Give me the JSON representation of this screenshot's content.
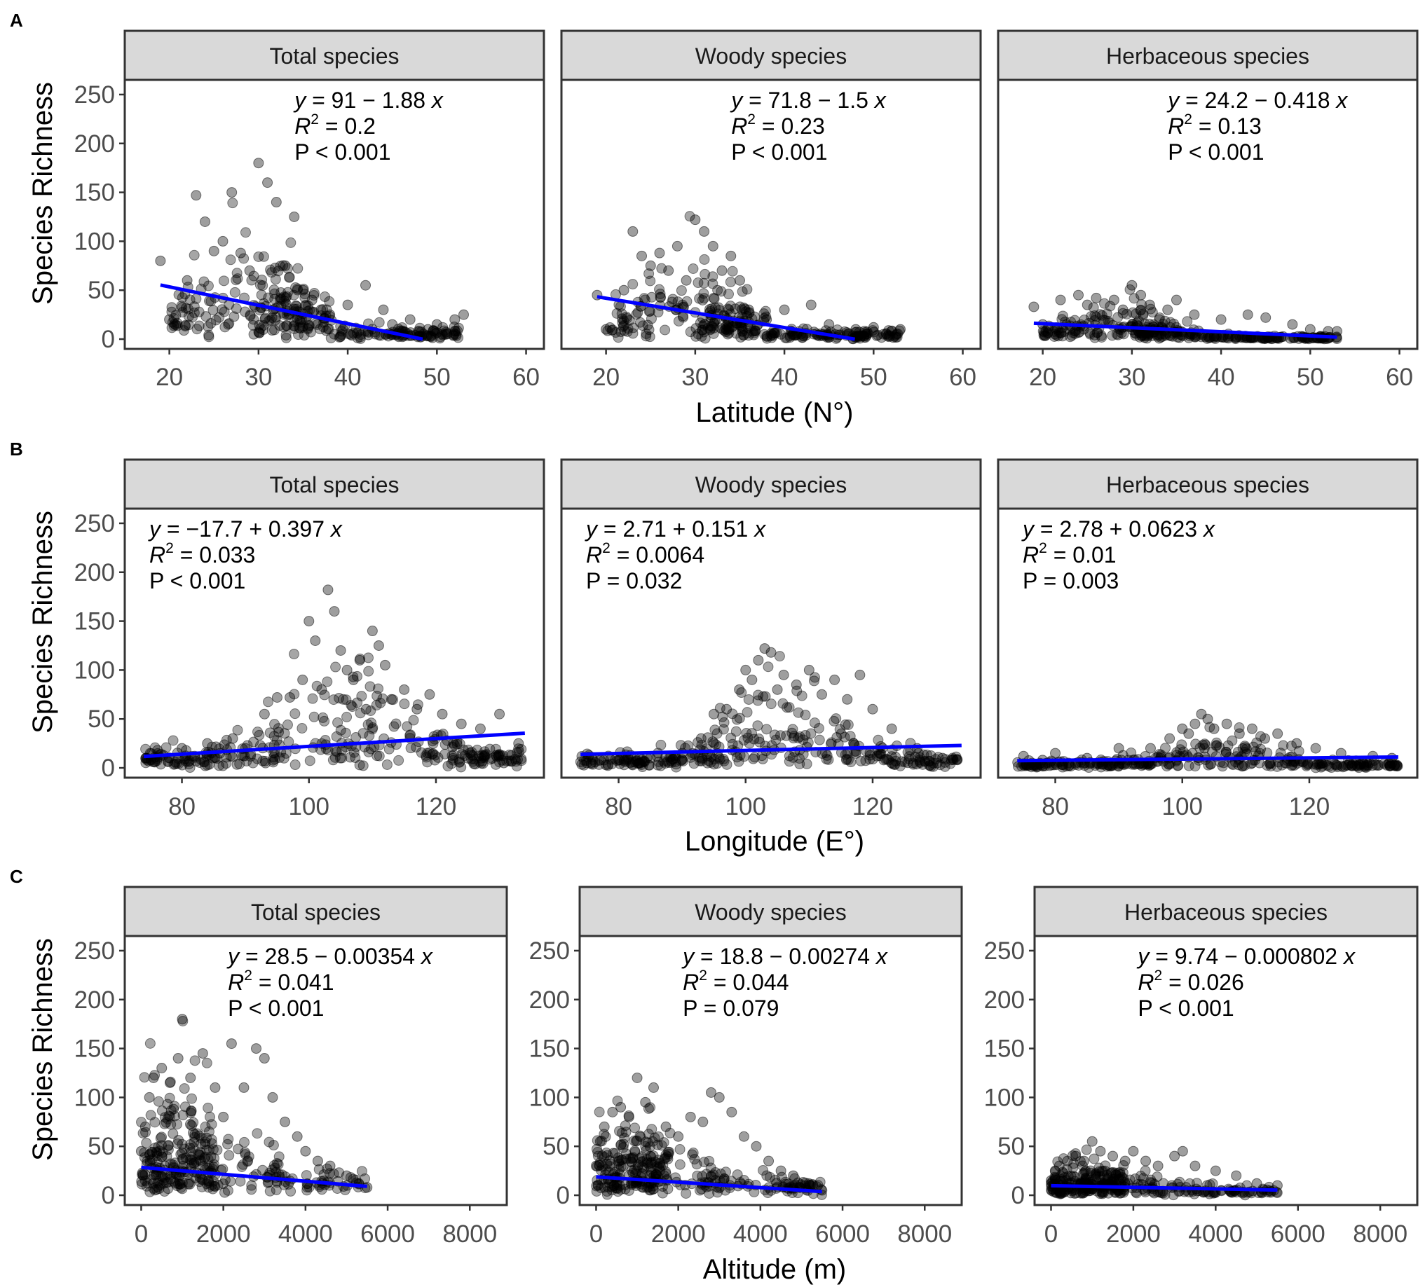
{
  "figure": {
    "y_label": "Species Richness",
    "colors": {
      "point": "#000000",
      "fit_line": "#0000ff",
      "strip_fill": "#d9d9d9",
      "frame": "#333333",
      "tick_text": "#4d4d4d"
    },
    "rows": [
      {
        "letter": "A",
        "xlabel": "Latitude (N°)",
        "xlim": [
          15,
          62
        ],
        "xticks": [
          20,
          30,
          40,
          50,
          60
        ],
        "show_y_each_panel": false,
        "panels": [
          {
            "strip": "Total species",
            "eq": {
              "pre": "y",
              "rest": " = 91 − 1.88 ",
              "xvar": "x",
              "r2": " = 0.2",
              "p": "P < 0.001"
            },
            "eq_pos": "top-right",
            "intercept": 91,
            "slope": -1.88,
            "fit_range": [
              19,
              48.4
            ],
            "cloud": "lat_total"
          },
          {
            "strip": "Woody species",
            "eq": {
              "pre": "y",
              "rest": " = 71.8 − 1.5 ",
              "xvar": "x",
              "r2": " = 0.23",
              "p": "P < 0.001"
            },
            "eq_pos": "top-right",
            "intercept": 71.8,
            "slope": -1.5,
            "fit_range": [
              19,
              47.9
            ],
            "cloud": "lat_woody"
          },
          {
            "strip": "Herbaceous species",
            "eq": {
              "pre": "y",
              "rest": " = 24.2 − 0.418 ",
              "xvar": "x",
              "r2": " = 0.13",
              "p": "P < 0.001"
            },
            "eq_pos": "top-right",
            "intercept": 24.2,
            "slope": -0.418,
            "fit_range": [
              19,
              53
            ],
            "cloud": "lat_herb"
          }
        ]
      },
      {
        "letter": "B",
        "xlabel": "Longitude (E°)",
        "xlim": [
          71,
          137
        ],
        "xticks": [
          80,
          100,
          120
        ],
        "show_y_each_panel": false,
        "panels": [
          {
            "strip": "Total species",
            "eq": {
              "pre": "y",
              "rest": " = −17.7 + 0.397 ",
              "xvar": "x",
              "r2": " = 0.033",
              "p": "P < 0.001"
            },
            "eq_pos": "top-left",
            "intercept": -17.7,
            "slope": 0.397,
            "fit_range": [
              74,
              134
            ],
            "cloud": "lon_total"
          },
          {
            "strip": "Woody species",
            "eq": {
              "pre": "y",
              "rest": " = 2.71 + 0.151 ",
              "xvar": "x",
              "r2": " = 0.0064",
              "p": "P = 0.032"
            },
            "eq_pos": "top-left",
            "intercept": 2.71,
            "slope": 0.151,
            "fit_range": [
              74,
              134
            ],
            "cloud": "lon_woody"
          },
          {
            "strip": "Herbaceous species",
            "eq": {
              "pre": "y",
              "rest": " = 2.78 + 0.0623 ",
              "xvar": "x",
              "r2": " = 0.01",
              "p": "P = 0.003"
            },
            "eq_pos": "top-left",
            "intercept": 2.78,
            "slope": 0.0623,
            "fit_range": [
              74,
              134
            ],
            "cloud": "lon_herb"
          }
        ]
      },
      {
        "letter": "C",
        "xlabel": "Altitude (m)",
        "xlim": [
          -400,
          8900
        ],
        "xticks": [
          0,
          2000,
          4000,
          6000,
          8000
        ],
        "show_y_each_panel": true,
        "panels": [
          {
            "strip": "Total species",
            "eq": {
              "pre": "y",
              "rest": " = 28.5 − 0.00354 ",
              "xvar": "x",
              "r2": " = 0.041",
              "p": "P < 0.001"
            },
            "eq_pos": "top-center",
            "intercept": 28.5,
            "slope": -0.00354,
            "fit_range": [
              0,
              5500
            ],
            "cloud": "alt_total"
          },
          {
            "strip": "Woody species",
            "eq": {
              "pre": "y",
              "rest": " = 18.8 − 0.00274 ",
              "xvar": "x",
              "r2": " = 0.044",
              "p": "P = 0.079"
            },
            "eq_pos": "top-center",
            "intercept": 18.8,
            "slope": -0.00274,
            "fit_range": [
              0,
              5500
            ],
            "cloud": "alt_woody"
          },
          {
            "strip": "Herbaceous species",
            "eq": {
              "pre": "y",
              "rest": " = 9.74 − 0.000802 ",
              "xvar": "x",
              "r2": " = 0.026",
              "p": "P < 0.001"
            },
            "eq_pos": "top-center",
            "intercept": 9.74,
            "slope": -0.000802,
            "fit_range": [
              0,
              5500
            ],
            "cloud": "alt_herb"
          }
        ]
      }
    ]
  },
  "chart_data": [
    {
      "type": "scatter",
      "title": "Total species",
      "xlabel": "Latitude (N°)",
      "ylabel": "Species Richness",
      "xlim": [
        15,
        62
      ],
      "ylim": [
        -10,
        265
      ],
      "yticks": [
        0,
        50,
        100,
        150,
        200,
        250
      ],
      "fit": {
        "intercept": 91,
        "slope": -1.88,
        "R2": 0.2,
        "P": "< 0.001"
      },
      "x": [
        19,
        20,
        22,
        23,
        24,
        25,
        26,
        27,
        28,
        29,
        30,
        31,
        32,
        33,
        34,
        35,
        36,
        37,
        38,
        40,
        42,
        44,
        45,
        47,
        49,
        50,
        52,
        53
      ],
      "y": [
        80,
        20,
        60,
        147,
        120,
        90,
        100,
        150,
        88,
        70,
        180,
        160,
        140,
        75,
        125,
        50,
        40,
        30,
        25,
        35,
        55,
        30,
        15,
        20,
        10,
        15,
        20,
        25
      ]
    },
    {
      "type": "scatter",
      "title": "Woody species",
      "xlabel": "Latitude (N°)",
      "ylabel": "Species Richness",
      "xlim": [
        15,
        62
      ],
      "ylim": [
        -10,
        265
      ],
      "fit": {
        "intercept": 71.8,
        "slope": -1.5,
        "R2": 0.23,
        "P": "< 0.001"
      },
      "x": [
        19,
        20,
        22,
        23,
        24,
        25,
        26,
        27,
        28,
        29,
        30,
        31,
        32,
        33,
        34,
        35,
        36,
        38,
        40,
        43,
        45,
        48,
        50,
        52,
        53
      ],
      "y": [
        45,
        10,
        50,
        110,
        85,
        75,
        88,
        70,
        95,
        60,
        122,
        110,
        95,
        70,
        85,
        60,
        30,
        20,
        30,
        35,
        15,
        10,
        12,
        8,
        10
      ]
    },
    {
      "type": "scatter",
      "title": "Herbaceous species",
      "xlabel": "Latitude (N°)",
      "ylabel": "Species Richness",
      "xlim": [
        15,
        62
      ],
      "ylim": [
        -10,
        265
      ],
      "fit": {
        "intercept": 24.2,
        "slope": -0.418,
        "R2": 0.13,
        "P": "< 0.001"
      },
      "x": [
        19,
        20,
        22,
        24,
        25,
        26,
        28,
        29,
        30,
        31,
        32,
        34,
        35,
        37,
        40,
        43,
        45,
        48,
        50,
        52,
        53
      ],
      "y": [
        33,
        15,
        40,
        45,
        35,
        42,
        40,
        30,
        55,
        45,
        35,
        30,
        40,
        25,
        20,
        25,
        22,
        15,
        10,
        8,
        8
      ]
    },
    {
      "type": "scatter",
      "title": "Total species",
      "xlabel": "Longitude (E°)",
      "ylabel": "Species Richness",
      "xlim": [
        71,
        137
      ],
      "ylim": [
        -10,
        265
      ],
      "fit": {
        "intercept": -17.7,
        "slope": 0.397,
        "R2": 0.033,
        "P": "< 0.001"
      },
      "x": [
        75,
        78,
        80,
        82,
        84,
        86,
        88,
        90,
        93,
        95,
        97,
        99,
        100,
        101,
        102,
        103,
        104,
        105,
        106,
        107,
        108,
        109,
        110,
        111,
        112,
        113,
        115,
        117,
        119,
        121,
        124,
        127,
        130,
        133
      ],
      "y": [
        15,
        10,
        20,
        12,
        25,
        15,
        30,
        20,
        55,
        72,
        72,
        90,
        150,
        130,
        80,
        182,
        160,
        120,
        100,
        90,
        110,
        60,
        140,
        125,
        105,
        70,
        80,
        60,
        75,
        55,
        45,
        40,
        55,
        25
      ]
    },
    {
      "type": "scatter",
      "title": "Woody species",
      "xlabel": "Longitude (E°)",
      "ylabel": "Species Richness",
      "xlim": [
        71,
        137
      ],
      "ylim": [
        -10,
        265
      ],
      "fit": {
        "intercept": 2.71,
        "slope": 0.151,
        "R2": 0.0064,
        "P": "= 0.032"
      },
      "x": [
        75,
        78,
        80,
        85,
        90,
        93,
        95,
        97,
        99,
        100,
        101,
        102,
        103,
        104,
        105,
        106,
        108,
        110,
        112,
        114,
        116,
        118,
        120,
        123,
        127,
        131
      ],
      "y": [
        5,
        3,
        8,
        10,
        15,
        30,
        55,
        60,
        80,
        100,
        90,
        110,
        122,
        118,
        80,
        95,
        85,
        100,
        75,
        90,
        70,
        95,
        60,
        40,
        20,
        10
      ]
    },
    {
      "type": "scatter",
      "title": "Herbaceous species",
      "xlabel": "Longitude (E°)",
      "ylabel": "Species Richness",
      "xlim": [
        71,
        137
      ],
      "ylim": [
        -10,
        265
      ],
      "fit": {
        "intercept": 2.78,
        "slope": 0.0623,
        "R2": 0.01,
        "P": "= 0.003"
      },
      "x": [
        75,
        78,
        80,
        85,
        90,
        95,
        98,
        100,
        101,
        102,
        103,
        104,
        105,
        107,
        109,
        111,
        113,
        115,
        118,
        121,
        125,
        130,
        133
      ],
      "y": [
        12,
        8,
        15,
        10,
        20,
        20,
        30,
        40,
        35,
        45,
        55,
        50,
        40,
        45,
        35,
        40,
        30,
        35,
        25,
        20,
        15,
        12,
        10
      ]
    },
    {
      "type": "scatter",
      "title": "Total species",
      "xlabel": "Altitude (m)",
      "ylabel": "Species Richness",
      "xlim": [
        -400,
        8900
      ],
      "ylim": [
        -10,
        265
      ],
      "fit": {
        "intercept": 28.5,
        "slope": -0.00354,
        "R2": 0.041,
        "P": "< 0.001"
      },
      "x": [
        0,
        100,
        200,
        300,
        500,
        700,
        900,
        1000,
        1200,
        1500,
        1800,
        2000,
        2200,
        2500,
        2800,
        3000,
        3200,
        3500,
        3800,
        4000,
        4300,
        4600,
        5000,
        5300,
        5500
      ],
      "y": [
        45,
        70,
        100,
        120,
        130,
        115,
        140,
        180,
        120,
        145,
        110,
        80,
        155,
        110,
        150,
        140,
        100,
        75,
        60,
        45,
        35,
        30,
        20,
        12,
        8
      ]
    },
    {
      "type": "scatter",
      "title": "Woody species",
      "xlabel": "Altitude (m)",
      "ylabel": "Species Richness",
      "xlim": [
        -400,
        8900
      ],
      "ylim": [
        -10,
        265
      ],
      "fit": {
        "intercept": 18.8,
        "slope": -0.00274,
        "R2": 0.044,
        "P": "= 0.079"
      },
      "x": [
        0,
        100,
        200,
        400,
        600,
        800,
        1000,
        1200,
        1400,
        1700,
        2000,
        2300,
        2600,
        2800,
        3000,
        3300,
        3600,
        3900,
        4200,
        4500,
        4800,
        5200,
        5500
      ],
      "y": [
        30,
        55,
        70,
        85,
        90,
        80,
        120,
        95,
        110,
        70,
        60,
        80,
        75,
        105,
        100,
        85,
        60,
        50,
        35,
        25,
        20,
        10,
        5
      ]
    },
    {
      "type": "scatter",
      "title": "Herbaceous species",
      "xlabel": "Altitude (m)",
      "ylabel": "Species Richness",
      "xlim": [
        -400,
        8900
      ],
      "ylim": [
        -10,
        265
      ],
      "fit": {
        "intercept": 9.74,
        "slope": -0.000802,
        "R2": 0.026,
        "P": "< 0.001"
      },
      "x": [
        0,
        100,
        200,
        400,
        600,
        800,
        1000,
        1200,
        1500,
        1800,
        2000,
        2300,
        2600,
        3000,
        3200,
        3500,
        4000,
        4500,
        5000,
        5500
      ],
      "y": [
        15,
        25,
        30,
        35,
        40,
        35,
        55,
        45,
        40,
        35,
        45,
        35,
        30,
        40,
        45,
        30,
        25,
        20,
        12,
        10
      ]
    }
  ]
}
